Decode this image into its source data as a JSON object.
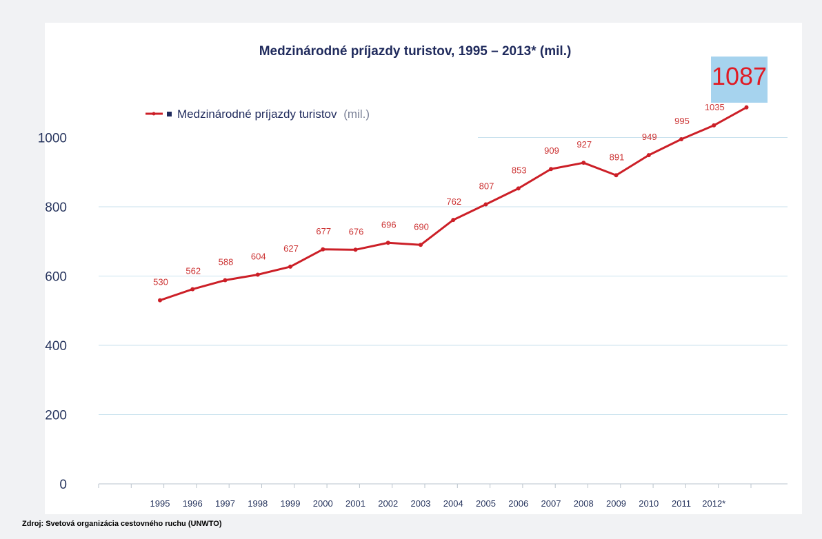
{
  "chart_data": {
    "type": "line",
    "title": "Medzinárodné príjazdy turistov, 1995 – 2013* (mil.)",
    "xlabel": "",
    "ylabel": "",
    "ylim": [
      0,
      1000
    ],
    "yticks": [
      "0",
      "200",
      "400",
      "600",
      "800",
      "1000"
    ],
    "categories": [
      "1995",
      "1996",
      "1997",
      "1998",
      "1999",
      "2000",
      "2001",
      "2002",
      "2003",
      "2004",
      "2005",
      "2006",
      "2007",
      "2008",
      "2009",
      "2010",
      "2011",
      "2012*",
      ""
    ],
    "series": [
      {
        "name": "Medzinárodné príjazdy turistov",
        "unit_label": "(mil.)",
        "values": [
          530,
          562,
          588,
          604,
          627,
          677,
          676,
          696,
          690,
          762,
          807,
          853,
          909,
          927,
          891,
          949,
          995,
          1035,
          1087
        ],
        "labels": [
          "530",
          "562",
          "588",
          "604",
          "627",
          "677",
          "676",
          "696",
          "690",
          "762",
          "807",
          "853",
          "909",
          "927",
          "891",
          "949",
          "995",
          "1035",
          "1087"
        ]
      }
    ],
    "highlight_label": "1087",
    "legend_position": "top-left",
    "grid": true,
    "colors": {
      "line": "#cc1f27",
      "label": "#cc3333",
      "tick": "#27355e",
      "grid": "#c9e2ee",
      "badge": "#a6d3ee",
      "highlight": "#e01b24"
    }
  },
  "footer": {
    "source": "Zdroj: Svetová organizácia cestovného ruchu (UNWTO)"
  }
}
